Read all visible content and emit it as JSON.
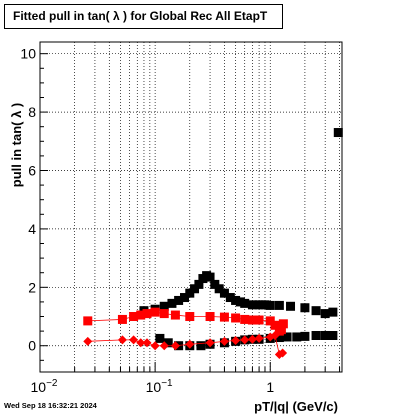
{
  "chart_data": {
    "type": "scatter",
    "title": "Fitted pull in tan( λ ) for Global Rec All EtapT",
    "xlabel": "pT/|q| (GeV/c)",
    "ylabel": "pull in tan( λ )",
    "x_scale": "log",
    "xlim": [
      0.01,
      4.2
    ],
    "ylim": [
      -0.9,
      10.4
    ],
    "y_ticks": [
      0,
      2,
      4,
      6,
      8,
      10
    ],
    "x_ticks": [
      {
        "value": 0.01,
        "base": "10",
        "exp": "−2"
      },
      {
        "value": 0.1,
        "base": "10",
        "exp": "−1"
      },
      {
        "value": 1,
        "base": "1",
        "exp": ""
      }
    ],
    "grid": true,
    "legend": "none",
    "colors": {
      "black_series": "#000000",
      "red_series": "#ff0000"
    },
    "series": [
      {
        "color": "#000000",
        "marker": "square",
        "x": [
          0.08,
          0.1,
          0.12,
          0.14,
          0.16,
          0.18,
          0.2,
          0.22,
          0.24,
          0.26,
          0.28,
          0.3,
          0.33,
          0.36,
          0.4,
          0.45,
          0.5,
          0.55,
          0.6,
          0.7,
          0.8,
          0.9,
          1.0,
          1.2,
          1.5,
          2.0,
          2.5,
          3.0,
          3.5,
          3.9
        ],
        "y": [
          1.2,
          1.25,
          1.35,
          1.45,
          1.55,
          1.65,
          1.8,
          1.95,
          2.1,
          2.3,
          2.4,
          2.35,
          2.1,
          1.95,
          1.8,
          1.65,
          1.55,
          1.5,
          1.45,
          1.4,
          1.4,
          1.4,
          1.38,
          1.38,
          1.35,
          1.3,
          1.2,
          1.1,
          1.15,
          7.3
        ]
      },
      {
        "color": "#000000",
        "marker": "square",
        "x": [
          0.11,
          0.13,
          0.16,
          0.2,
          0.25,
          0.3,
          0.4,
          0.5,
          0.6,
          0.7,
          0.8,
          1.0,
          1.2,
          1.4,
          1.7,
          2.0,
          2.5,
          3.0,
          3.5
        ],
        "y": [
          0.25,
          0.1,
          0.0,
          0.0,
          0.0,
          0.05,
          0.1,
          0.15,
          0.2,
          0.22,
          0.22,
          0.25,
          0.28,
          0.3,
          0.3,
          0.32,
          0.35,
          0.35,
          0.35
        ]
      },
      {
        "color": "#ff0000",
        "marker": "square",
        "x": [
          0.026,
          0.052,
          0.065,
          0.075,
          0.085,
          0.1,
          0.12,
          0.15,
          0.2,
          0.3,
          0.4,
          0.5,
          0.6,
          0.7,
          0.8,
          1.0,
          1.1,
          1.2,
          1.25,
          1.3
        ],
        "y": [
          0.85,
          0.9,
          1.0,
          1.05,
          1.1,
          1.15,
          1.1,
          1.05,
          1.0,
          1.0,
          0.98,
          0.95,
          0.9,
          0.88,
          0.88,
          0.85,
          0.7,
          0.5,
          0.55,
          0.75
        ]
      },
      {
        "color": "#ff0000",
        "marker": "diamond",
        "x": [
          0.026,
          0.052,
          0.065,
          0.075,
          0.085,
          0.1,
          0.12,
          0.15,
          0.2,
          0.3,
          0.4,
          0.5,
          0.6,
          0.7,
          0.8,
          1.0,
          1.1,
          1.2,
          1.28
        ],
        "y": [
          0.15,
          0.2,
          0.2,
          0.1,
          0.1,
          0.0,
          0.0,
          0.0,
          0.05,
          0.1,
          0.15,
          0.18,
          0.2,
          0.22,
          0.25,
          0.3,
          0.35,
          -0.3,
          -0.25
        ]
      }
    ]
  },
  "timestamp": "Wed Sep 18 16:32:21 2024"
}
